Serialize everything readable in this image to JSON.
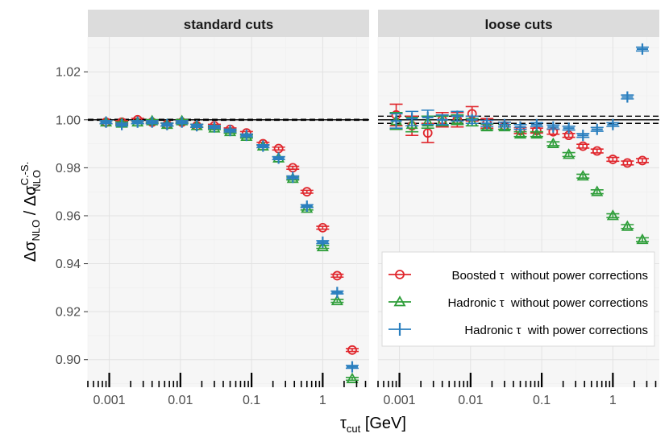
{
  "chart_data": {
    "type": "scatter",
    "x_scale": "log",
    "xlim": [
      0.0005,
      4.5
    ],
    "ylim": [
      0.8885,
      1.0345
    ],
    "xlabel": {
      "main": "τ",
      "sub": "cut",
      "unit": " [GeV]"
    },
    "ylabel": {
      "lead": "Δσ",
      "lead_sub": "NLO",
      "sep": " / ",
      "tail": "Δσ",
      "tail_sub": "NLO",
      "tail_sup": "C.-S."
    },
    "x_ticks": [
      {
        "v": 0.001,
        "label": "0.001"
      },
      {
        "v": 0.01,
        "label": "0.01"
      },
      {
        "v": 0.1,
        "label": "0.1"
      },
      {
        "v": 1,
        "label": "1"
      }
    ],
    "y_ticks": [
      {
        "v": 0.9,
        "label": "0.90"
      },
      {
        "v": 0.92,
        "label": "0.92"
      },
      {
        "v": 0.94,
        "label": "0.94"
      },
      {
        "v": 0.96,
        "label": "0.96"
      },
      {
        "v": 0.98,
        "label": "0.98"
      },
      {
        "v": 1.0,
        "label": "1.00"
      },
      {
        "v": 1.02,
        "label": "1.02"
      }
    ],
    "legend": {
      "placement": "bottom-right of right panel",
      "entries": [
        {
          "key": "boosted",
          "label": "Boosted τ  without power corrections"
        },
        {
          "key": "hadronic",
          "label": "Hadronic τ  without power corrections"
        },
        {
          "key": "hadronic_pc",
          "label": "Hadronic τ  with power corrections"
        }
      ]
    },
    "colors": {
      "boosted": "#e0262c",
      "hadronic": "#2f9e3a",
      "hadronic_pc": "#2a7fbf",
      "panel_bg": "#f6f6f6",
      "grid": "#e4e4e4",
      "strip": "#dcdcdc"
    },
    "panels": [
      {
        "title": "standard cuts",
        "reference": {
          "solid": 1.0,
          "dashed": [
            0.9998,
            1.0002
          ]
        },
        "series": [
          {
            "key": "boosted",
            "marker": "circle",
            "points": [
              [
                0.0009,
                0.999,
                0.0006
              ],
              [
                0.0015,
                0.999,
                0.0006
              ],
              [
                0.0025,
                1.0,
                0.0006
              ],
              [
                0.004,
                0.999,
                0.0006
              ],
              [
                0.0065,
                0.998,
                0.0006
              ],
              [
                0.0105,
                0.999,
                0.0006
              ],
              [
                0.017,
                0.9975,
                0.0006
              ],
              [
                0.03,
                0.9975,
                0.0006
              ],
              [
                0.05,
                0.996,
                0.0006
              ],
              [
                0.085,
                0.9945,
                0.0006
              ],
              [
                0.145,
                0.99,
                0.0006
              ],
              [
                0.24,
                0.988,
                0.0006
              ],
              [
                0.38,
                0.98,
                0.0006
              ],
              [
                0.6,
                0.97,
                0.0006
              ],
              [
                1.0,
                0.955,
                0.0006
              ],
              [
                1.6,
                0.935,
                0.0006
              ],
              [
                2.6,
                0.904,
                0.0006
              ]
            ]
          },
          {
            "key": "hadronic",
            "marker": "triangle",
            "points": [
              [
                0.0009,
                0.999,
                0.0006
              ],
              [
                0.0015,
                0.9985,
                0.0006
              ],
              [
                0.0025,
                0.999,
                0.0006
              ],
              [
                0.004,
                0.9995,
                0.0006
              ],
              [
                0.0065,
                0.998,
                0.0006
              ],
              [
                0.0105,
                0.9995,
                0.0006
              ],
              [
                0.017,
                0.9975,
                0.0006
              ],
              [
                0.03,
                0.9965,
                0.0006
              ],
              [
                0.05,
                0.995,
                0.0006
              ],
              [
                0.085,
                0.993,
                0.0006
              ],
              [
                0.145,
                0.989,
                0.0006
              ],
              [
                0.24,
                0.984,
                0.0006
              ],
              [
                0.38,
                0.9755,
                0.0006
              ],
              [
                0.6,
                0.963,
                0.0006
              ],
              [
                1.0,
                0.947,
                0.0006
              ],
              [
                1.6,
                0.9245,
                0.0006
              ],
              [
                2.6,
                0.892,
                0.0006
              ]
            ]
          },
          {
            "key": "hadronic_pc",
            "marker": "plus",
            "points": [
              [
                0.0009,
                0.999,
                0.0006
              ],
              [
                0.0015,
                0.998,
                0.0006
              ],
              [
                0.0025,
                0.999,
                0.0006
              ],
              [
                0.004,
                0.999,
                0.0006
              ],
              [
                0.0065,
                0.998,
                0.0006
              ],
              [
                0.0105,
                0.999,
                0.0006
              ],
              [
                0.017,
                0.9975,
                0.0006
              ],
              [
                0.03,
                0.997,
                0.0006
              ],
              [
                0.05,
                0.9955,
                0.0006
              ],
              [
                0.085,
                0.9935,
                0.0006
              ],
              [
                0.145,
                0.989,
                0.0006
              ],
              [
                0.24,
                0.984,
                0.0006
              ],
              [
                0.38,
                0.976,
                0.0006
              ],
              [
                0.6,
                0.964,
                0.0006
              ],
              [
                1.0,
                0.949,
                0.0006
              ],
              [
                1.6,
                0.928,
                0.0006
              ],
              [
                2.6,
                0.897,
                0.0006
              ]
            ]
          }
        ]
      },
      {
        "title": "loose cuts",
        "reference": {
          "solid": 1.0,
          "dashed": [
            0.9985,
            1.0015
          ]
        },
        "series": [
          {
            "key": "boosted",
            "marker": "circle",
            "points": [
              [
                0.0009,
                1.002,
                0.0045
              ],
              [
                0.0015,
                0.9975,
                0.004
              ],
              [
                0.0025,
                0.9945,
                0.004
              ],
              [
                0.004,
                1.0,
                0.003
              ],
              [
                0.0065,
                1.0,
                0.003
              ],
              [
                0.0105,
                1.0025,
                0.003
              ],
              [
                0.017,
                0.9985,
                0.002
              ],
              [
                0.03,
                0.9975,
                0.0015
              ],
              [
                0.05,
                0.9955,
                0.0012
              ],
              [
                0.085,
                0.9955,
                0.001
              ],
              [
                0.145,
                0.995,
                0.001
              ],
              [
                0.24,
                0.9935,
                0.0008
              ],
              [
                0.38,
                0.989,
                0.0008
              ],
              [
                0.6,
                0.987,
                0.0008
              ],
              [
                1.0,
                0.9835,
                0.0008
              ],
              [
                1.6,
                0.982,
                0.0008
              ],
              [
                2.6,
                0.983,
                0.0008
              ]
            ]
          },
          {
            "key": "hadronic",
            "marker": "triangle",
            "points": [
              [
                0.0009,
                0.9995,
                0.0035
              ],
              [
                0.0015,
                0.998,
                0.003
              ],
              [
                0.0025,
                0.999,
                0.0025
              ],
              [
                0.004,
                0.9995,
                0.002
              ],
              [
                0.0065,
                1.0,
                0.002
              ],
              [
                0.0105,
                0.999,
                0.0015
              ],
              [
                0.017,
                0.997,
                0.0012
              ],
              [
                0.03,
                0.997,
                0.001
              ],
              [
                0.05,
                0.994,
                0.001
              ],
              [
                0.085,
                0.994,
                0.001
              ],
              [
                0.145,
                0.99,
                0.0008
              ],
              [
                0.24,
                0.9855,
                0.0008
              ],
              [
                0.38,
                0.9765,
                0.0008
              ],
              [
                0.6,
                0.97,
                0.0008
              ],
              [
                1.0,
                0.96,
                0.0008
              ],
              [
                1.6,
                0.9555,
                0.0008
              ],
              [
                2.6,
                0.95,
                0.0008
              ]
            ]
          },
          {
            "key": "hadronic_pc",
            "marker": "plus",
            "points": [
              [
                0.0009,
                0.9995,
                0.003
              ],
              [
                0.0015,
                1.0005,
                0.003
              ],
              [
                0.0025,
                1.001,
                0.003
              ],
              [
                0.004,
                1.0,
                0.002
              ],
              [
                0.0065,
                1.0015,
                0.002
              ],
              [
                0.0105,
                1.0,
                0.0015
              ],
              [
                0.017,
                0.9985,
                0.0012
              ],
              [
                0.03,
                0.998,
                0.001
              ],
              [
                0.05,
                0.997,
                0.001
              ],
              [
                0.085,
                0.998,
                0.0008
              ],
              [
                0.145,
                0.997,
                0.0008
              ],
              [
                0.24,
                0.9965,
                0.0008
              ],
              [
                0.38,
                0.9935,
                0.0008
              ],
              [
                0.6,
                0.996,
                0.0008
              ],
              [
                1.0,
                0.998,
                0.0008
              ],
              [
                1.6,
                1.0095,
                0.0008
              ],
              [
                2.6,
                1.0295,
                0.0008
              ]
            ]
          }
        ]
      }
    ]
  }
}
